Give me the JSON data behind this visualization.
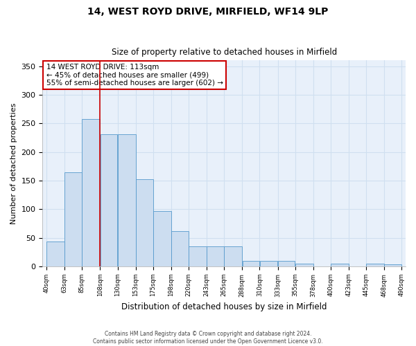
{
  "title1": "14, WEST ROYD DRIVE, MIRFIELD, WF14 9LP",
  "title2": "Size of property relative to detached houses in Mirfield",
  "xlabel": "Distribution of detached houses by size in Mirfield",
  "ylabel": "Number of detached properties",
  "footnote1": "Contains HM Land Registry data © Crown copyright and database right 2024.",
  "footnote2": "Contains public sector information licensed under the Open Government Licence v3.0.",
  "annotation_line1": "14 WEST ROYD DRIVE: 113sqm",
  "annotation_line2": "← 45% of detached houses are smaller (499)",
  "annotation_line3": "55% of semi-detached houses are larger (602) →",
  "bar_left_edges": [
    40,
    63,
    85,
    108,
    130,
    153,
    175,
    198,
    220,
    243,
    265,
    288,
    310,
    333,
    355,
    378,
    400,
    423,
    445,
    468
  ],
  "bar_widths": [
    23,
    22,
    23,
    22,
    23,
    22,
    23,
    22,
    23,
    22,
    23,
    22,
    23,
    22,
    23,
    22,
    23,
    22,
    23,
    22
  ],
  "bar_heights": [
    44,
    165,
    258,
    231,
    231,
    152,
    97,
    62,
    35,
    35,
    35,
    10,
    10,
    10,
    5,
    0,
    5,
    0,
    5,
    3
  ],
  "tick_labels": [
    "40sqm",
    "63sqm",
    "85sqm",
    "108sqm",
    "130sqm",
    "153sqm",
    "175sqm",
    "198sqm",
    "220sqm",
    "243sqm",
    "265sqm",
    "288sqm",
    "310sqm",
    "333sqm",
    "355sqm",
    "378sqm",
    "400sqm",
    "423sqm",
    "445sqm",
    "468sqm",
    "490sqm"
  ],
  "bar_color": "#ccddf0",
  "bar_edge_color": "#5599cc",
  "vline_color": "#cc0000",
  "vline_x": 108,
  "annotation_box_color": "#ffffff",
  "annotation_box_edge": "#cc0000",
  "grid_color": "#d0dff0",
  "background_color": "#e8f0fa",
  "ylim": [
    0,
    360
  ],
  "yticks": [
    0,
    50,
    100,
    150,
    200,
    250,
    300,
    350
  ],
  "xlim_left": 35,
  "xlim_right": 495
}
